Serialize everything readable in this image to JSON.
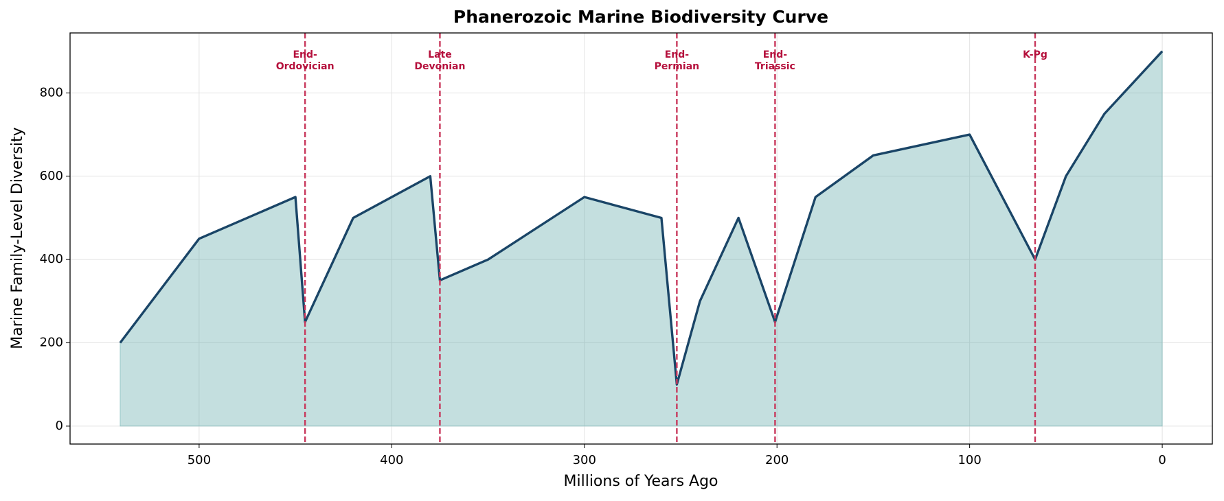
{
  "chart_data": {
    "type": "area",
    "title": "Phanerozoic Marine Biodiversity Curve",
    "xlabel": "Millions of Years Ago",
    "ylabel": "Marine Family-Level Diversity",
    "x": [
      541,
      500,
      450,
      445,
      420,
      380,
      375,
      350,
      300,
      260,
      252,
      240,
      220,
      201,
      180,
      150,
      100,
      66,
      50,
      30,
      0
    ],
    "values": [
      200,
      450,
      550,
      250,
      500,
      600,
      350,
      400,
      550,
      500,
      100,
      300,
      500,
      250,
      550,
      650,
      700,
      400,
      600,
      750,
      900
    ],
    "color": "#1a4567",
    "fill_color": "#5fa9a9",
    "xlim": [
      567,
      -26
    ],
    "ylim": [
      -43,
      944
    ],
    "xticks": [
      500,
      400,
      300,
      200,
      100,
      0
    ],
    "yticks": [
      0,
      200,
      400,
      600,
      800
    ],
    "grid": true,
    "events": [
      {
        "x": 445,
        "label": [
          "End-",
          "Ordovician"
        ]
      },
      {
        "x": 375,
        "label": [
          "Late",
          "Devonian"
        ]
      },
      {
        "x": 252,
        "label": [
          "End-",
          "Permian"
        ]
      },
      {
        "x": 201,
        "label": [
          "End-",
          "Triassic"
        ]
      },
      {
        "x": 66,
        "label": [
          "K-Pg"
        ]
      }
    ],
    "event_color": "#c8385c",
    "event_label_color": "#b5103c"
  }
}
